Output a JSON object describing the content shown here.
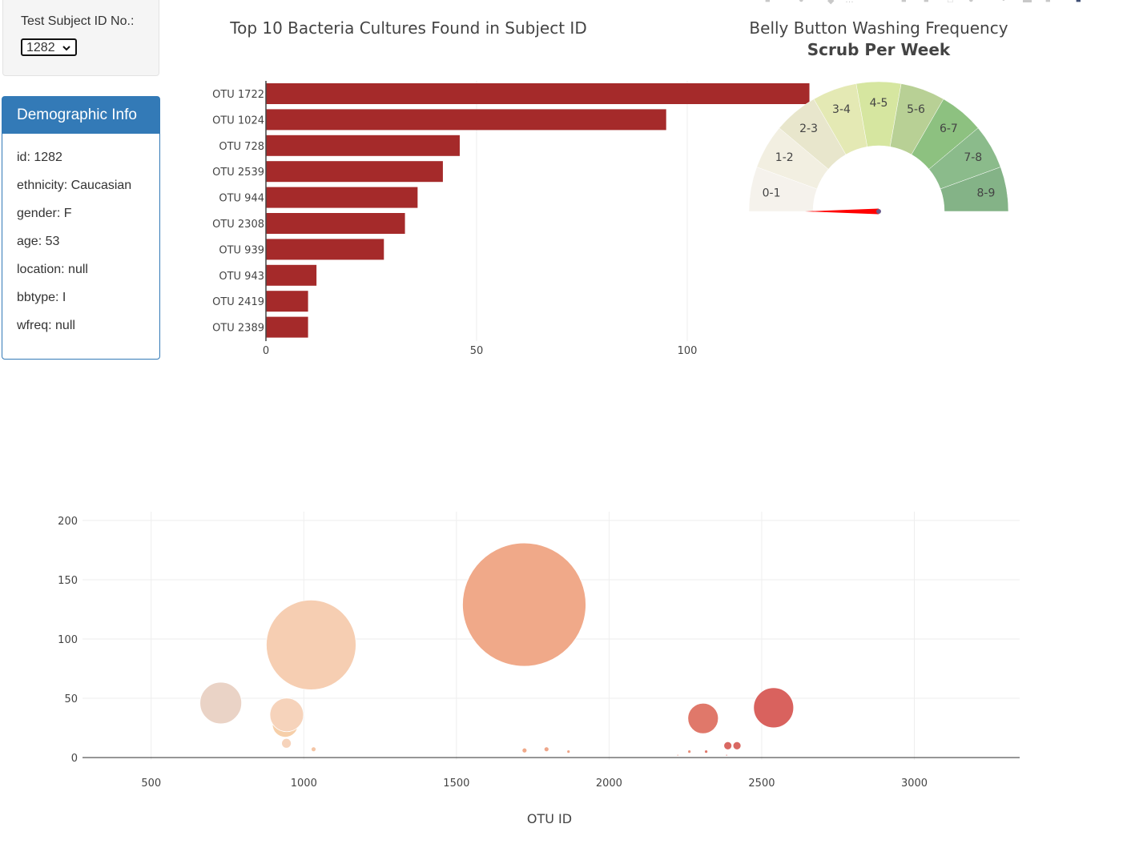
{
  "selector": {
    "label": "Test Subject ID No.:",
    "value": "1282"
  },
  "demographic": {
    "title": "Demographic Info",
    "rows": [
      "id: 1282",
      "ethnicity: Caucasian",
      "gender: F",
      "age: 53",
      "location: null",
      "bbtype: I",
      "wfreq: null"
    ]
  },
  "bar_chart": {
    "type": "bar",
    "orientation": "horizontal",
    "title": "Top 10 Bacteria Cultures Found in Subject ID",
    "categories": [
      "OTU 1722",
      "OTU 1024",
      "OTU 728",
      "OTU 2539",
      "OTU 944",
      "OTU 2308",
      "OTU 939",
      "OTU 943",
      "OTU 2419",
      "OTU 2389"
    ],
    "values": [
      129,
      95,
      46,
      42,
      36,
      33,
      28,
      12,
      10,
      10
    ],
    "xticks": [
      0,
      50,
      100
    ],
    "xlim": [
      0,
      135
    ],
    "color": "#a52a2a"
  },
  "gauge": {
    "title": "Belly Button Washing Frequency",
    "subtitle": "Scrub Per Week",
    "segments": [
      {
        "label": "0-1",
        "color": "#f5f2ec"
      },
      {
        "label": "1-2",
        "color": "#f2efe1"
      },
      {
        "label": "2-3",
        "color": "#e8e6cc"
      },
      {
        "label": "3-4",
        "color": "#e4e9b4"
      },
      {
        "label": "4-5",
        "color": "#d6e6a0"
      },
      {
        "label": "5-6",
        "color": "#b8d095"
      },
      {
        "label": "6-7",
        "color": "#8dc180"
      },
      {
        "label": "7-8",
        "color": "#8bbb8b"
      },
      {
        "label": "8-9",
        "color": "#84b387"
      }
    ],
    "value": 0,
    "needle_color": "#ff0000"
  },
  "bubble_chart": {
    "type": "scatter",
    "xlabel": "OTU ID",
    "xticks": [
      500,
      1000,
      1500,
      2000,
      2500,
      3000
    ],
    "yticks": [
      0,
      50,
      100,
      150,
      200
    ],
    "xlim": [
      275,
      3345
    ],
    "ylim": [
      -2,
      202
    ],
    "points": [
      {
        "x": 728,
        "y": 46,
        "r": 26,
        "color": "#ead3c6"
      },
      {
        "x": 939,
        "y": 28,
        "r": 16,
        "color": "#f6cfa9"
      },
      {
        "x": 944,
        "y": 36,
        "r": 21,
        "color": "#f6d3bb"
      },
      {
        "x": 943,
        "y": 12,
        "r": 6,
        "color": "#f6d3bb"
      },
      {
        "x": 1024,
        "y": 95,
        "r": 56,
        "color": "#f6ceb2"
      },
      {
        "x": 1032,
        "y": 7,
        "r": 3,
        "color": "#f4c6a6"
      },
      {
        "x": 1722,
        "y": 129,
        "r": 77,
        "color": "#f0a989"
      },
      {
        "x": 1723,
        "y": 6,
        "r": 3,
        "color": "#f0a989"
      },
      {
        "x": 1795,
        "y": 7,
        "r": 3,
        "color": "#eea68a"
      },
      {
        "x": 1867,
        "y": 5,
        "r": 2,
        "color": "#eea68a"
      },
      {
        "x": 2263,
        "y": 5,
        "r": 2,
        "color": "#e88f7b"
      },
      {
        "x": 2308,
        "y": 33,
        "r": 19,
        "color": "#e0786a"
      },
      {
        "x": 2318,
        "y": 5,
        "r": 2,
        "color": "#e0786a"
      },
      {
        "x": 2389,
        "y": 10,
        "r": 5,
        "color": "#d96862"
      },
      {
        "x": 2419,
        "y": 10,
        "r": 5,
        "color": "#d96862"
      },
      {
        "x": 2539,
        "y": 42,
        "r": 25,
        "color": "#d9625e"
      },
      {
        "x": 2225,
        "y": 2,
        "r": 1,
        "color": "#e88f7b"
      },
      {
        "x": 2385,
        "y": 2,
        "r": 1,
        "color": "#d96862"
      }
    ]
  }
}
